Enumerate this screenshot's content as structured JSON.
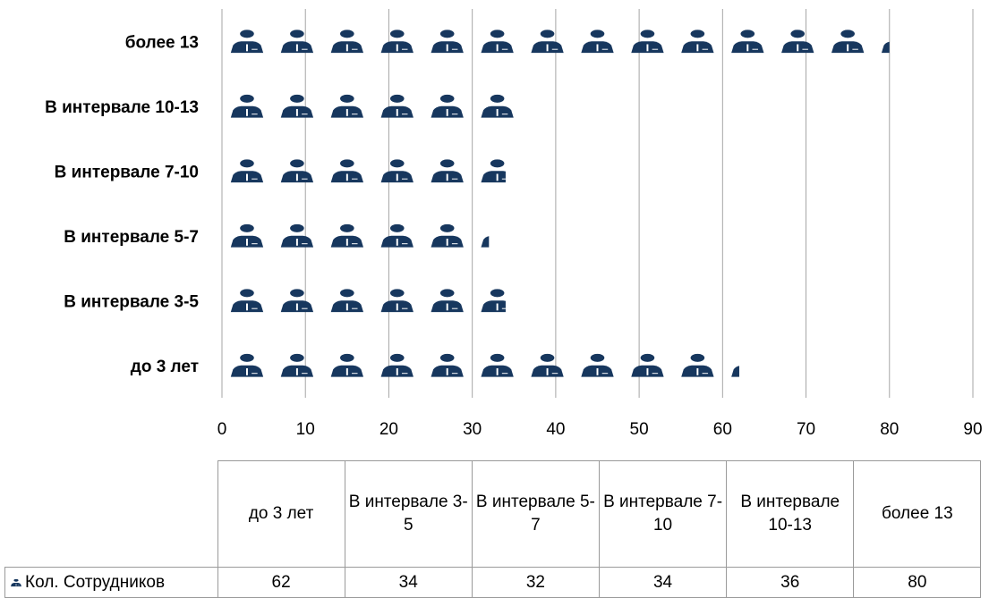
{
  "chart_data": {
    "type": "bar",
    "orientation": "horizontal",
    "categories": [
      "до 3 лет",
      "В интервале 3-5",
      "В интервале 5-7",
      "В интервале 7-10",
      "В интервале 10-13",
      "более 13"
    ],
    "table_headers": [
      "до 3 лет",
      "В интервале 3-5",
      "В интервале 5-7",
      "В интервале 7-10",
      "В интервале 10-13",
      "более 13"
    ],
    "series": [
      {
        "name": "Кол. Сотрудников",
        "values": [
          62,
          34,
          32,
          34,
          36,
          80
        ]
      }
    ],
    "xlim": [
      0,
      90
    ],
    "xticks": [
      0,
      10,
      20,
      30,
      40,
      50,
      60,
      70,
      80,
      90
    ],
    "units_per_icon": 6,
    "grid": "vertical",
    "legend": "data-table",
    "bar_color": "#17375e"
  }
}
